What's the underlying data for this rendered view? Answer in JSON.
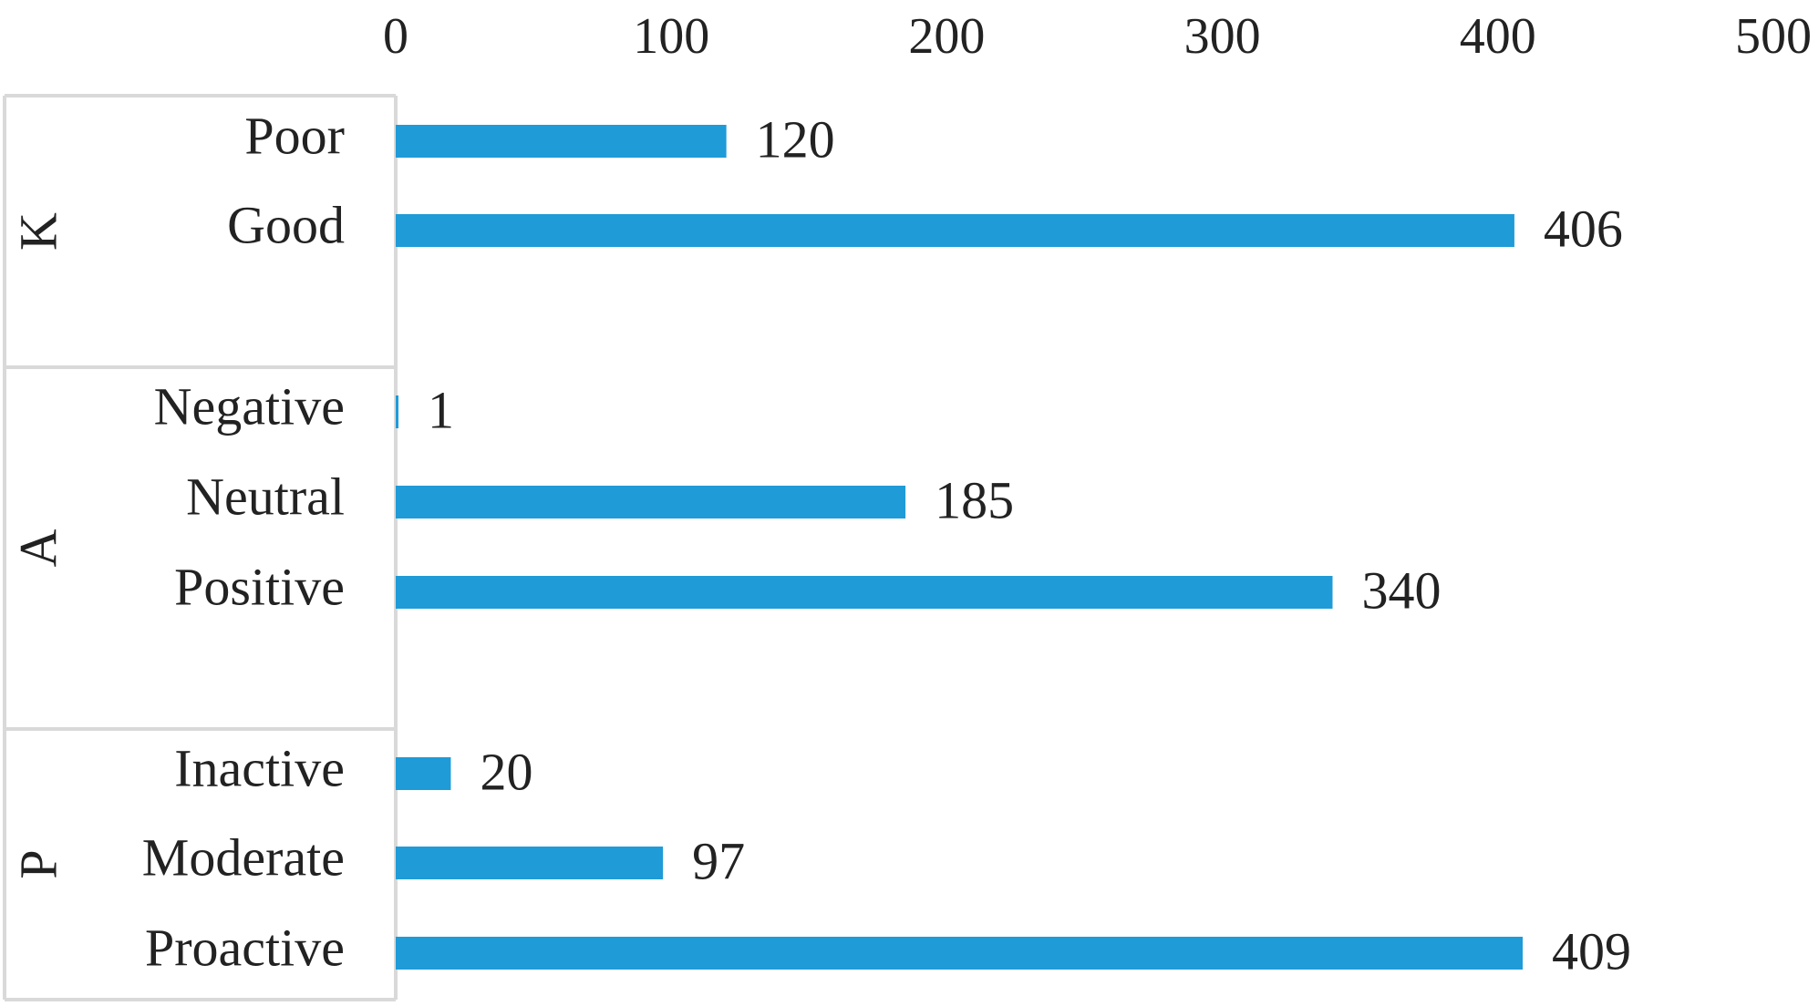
{
  "chart_data": {
    "type": "bar",
    "orientation": "horizontal",
    "xlim": [
      0,
      500
    ],
    "x_ticks": [
      "0",
      "100",
      "200",
      "300",
      "400",
      "500"
    ],
    "x_axis_position": "top",
    "grid": false,
    "legend": "none",
    "bar_color": "#1f9bd7",
    "groups": [
      {
        "name": "K",
        "categories": [
          "Poor",
          "Good"
        ],
        "values": [
          120,
          406
        ]
      },
      {
        "name": "A",
        "categories": [
          "Negative",
          "Neutral",
          "Positive"
        ],
        "values": [
          1,
          185,
          340
        ]
      },
      {
        "name": "P",
        "categories": [
          "Inactive",
          "Moderate",
          "Proactive"
        ],
        "values": [
          20,
          97,
          409
        ]
      }
    ]
  }
}
